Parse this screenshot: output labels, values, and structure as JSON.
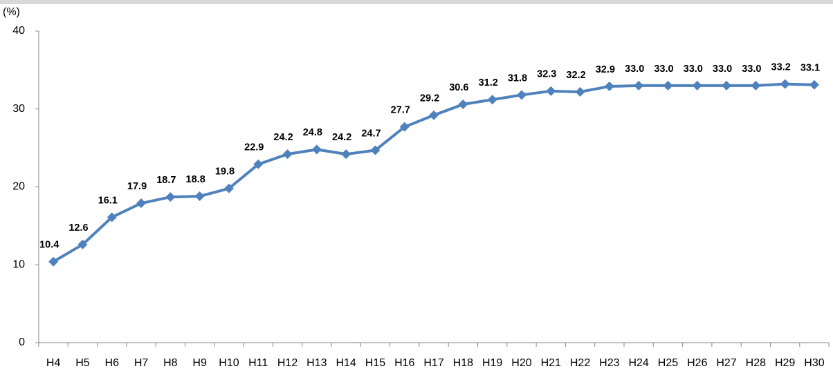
{
  "chart_data": {
    "type": "line",
    "y_label": "(%)",
    "categories": [
      "H4",
      "H5",
      "H6",
      "H7",
      "H8",
      "H9",
      "H10",
      "H11",
      "H12",
      "H13",
      "H14",
      "H15",
      "H16",
      "H17",
      "H18",
      "H19",
      "H20",
      "H21",
      "H22",
      "H23",
      "H24",
      "H25",
      "H26",
      "H27",
      "H28",
      "H29",
      "H30"
    ],
    "series": [
      {
        "name": "",
        "color": "#4f81bd",
        "values": [
          10.4,
          12.6,
          16.1,
          17.9,
          18.7,
          18.8,
          19.8,
          22.9,
          24.2,
          24.8,
          24.2,
          24.7,
          27.7,
          29.2,
          30.6,
          31.2,
          31.8,
          32.3,
          32.2,
          32.9,
          33.0,
          33.0,
          33.0,
          33.0,
          33.0,
          33.2,
          33.1
        ],
        "value_labels": [
          "10.4",
          "12.6",
          "16.1",
          "17.9",
          "18.7",
          "18.8",
          "19.8",
          "22.9",
          "24.2",
          "24.8",
          "24.2",
          "24.7",
          "27.7",
          "29.2",
          "30.6",
          "31.2",
          "31.8",
          "32.3",
          "32.2",
          "32.9",
          "33.0",
          "33.0",
          "33.0",
          "33.0",
          "33.0",
          "33.2",
          "33.1"
        ]
      }
    ],
    "ylim": [
      0,
      40
    ],
    "yticks": [
      0,
      10,
      20,
      30,
      40
    ],
    "grid": false
  }
}
